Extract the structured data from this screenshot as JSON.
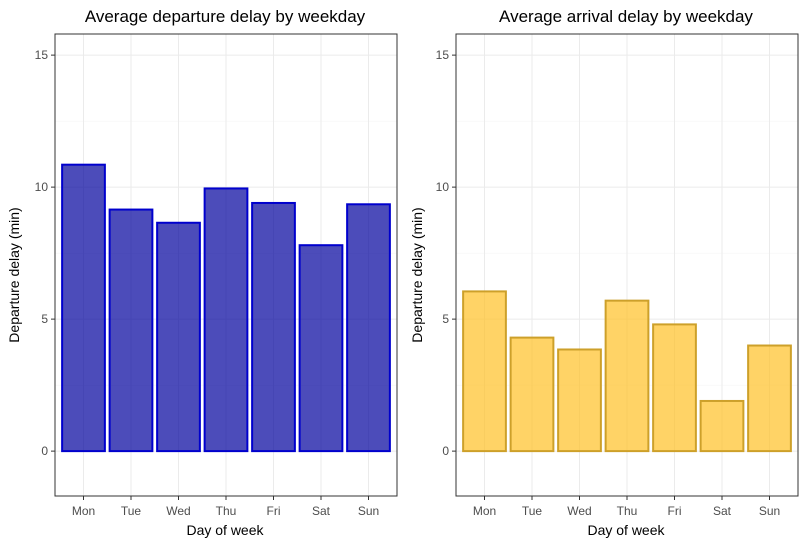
{
  "chart_data": [
    {
      "type": "bar",
      "title": "Average departure delay by weekday",
      "xlabel": "Day of week",
      "ylabel": "Departure delay (min)",
      "categories": [
        "Mon",
        "Tue",
        "Wed",
        "Thu",
        "Fri",
        "Sat",
        "Sun"
      ],
      "values": [
        10.85,
        9.15,
        8.65,
        9.95,
        9.4,
        7.8,
        9.35
      ],
      "ylim": [
        -1.7,
        15.8
      ],
      "yticks": [
        0,
        5,
        10,
        15
      ],
      "grid": true,
      "fill": "#00009C",
      "stroke": "#0000CD"
    },
    {
      "type": "bar",
      "title": "Average arrival delay by weekday",
      "xlabel": "Day of week",
      "ylabel": "Departure delay (min)",
      "categories": [
        "Mon",
        "Tue",
        "Wed",
        "Thu",
        "Fri",
        "Sat",
        "Sun"
      ],
      "values": [
        6.05,
        4.3,
        3.85,
        5.7,
        4.8,
        1.9,
        4.0
      ],
      "ylim": [
        -1.7,
        15.8
      ],
      "yticks": [
        0,
        5,
        10,
        15
      ],
      "grid": true,
      "fill": "#FFC125",
      "stroke": "#CDA02A"
    }
  ]
}
